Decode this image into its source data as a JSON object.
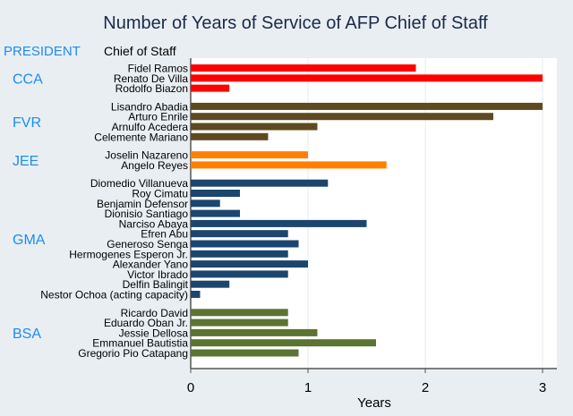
{
  "chart_data": {
    "type": "bar",
    "orientation": "horizontal",
    "title": "Number of Years of Service of AFP Chief of Staff",
    "xlabel": "Years",
    "group_header": "PRESIDENT",
    "category_header": "Chief of Staff",
    "xlim": [
      0,
      3.1
    ],
    "xticks": [
      "0",
      "1",
      "2",
      "3"
    ],
    "grid": true,
    "groups": [
      {
        "name": "CCA",
        "color": "#ff0000",
        "items": [
          {
            "label": "Fidel Ramos",
            "value": 1.92
          },
          {
            "label": "Renato De Villa",
            "value": 3.0
          },
          {
            "label": "Rodolfo Biazon",
            "value": 0.33
          }
        ]
      },
      {
        "name": "FVR",
        "color": "#5e4a1e",
        "items": [
          {
            "label": "Lisandro Abadia",
            "value": 3.0
          },
          {
            "label": "Arturo Enrile",
            "value": 2.58
          },
          {
            "label": "Arnulfo Acedera",
            "value": 1.08
          },
          {
            "label": "Celemente Mariano",
            "value": 0.66
          }
        ]
      },
      {
        "name": "JEE",
        "color": "#ff8000",
        "items": [
          {
            "label": "Joselin Nazareno",
            "value": 1.0
          },
          {
            "label": "Angelo Reyes",
            "value": 1.67
          }
        ]
      },
      {
        "name": "GMA",
        "color": "#1c466e",
        "items": [
          {
            "label": "Diomedio Villanueva",
            "value": 1.17
          },
          {
            "label": "Roy Cimatu",
            "value": 0.42
          },
          {
            "label": "Benjamin Defensor",
            "value": 0.25
          },
          {
            "label": "Dionisio Santiago",
            "value": 0.42
          },
          {
            "label": "Narciso Abaya",
            "value": 1.5
          },
          {
            "label": "Efren Abu",
            "value": 0.83
          },
          {
            "label": "Generoso Senga",
            "value": 0.92
          },
          {
            "label": "Hermogenes Esperon Jr.",
            "value": 0.83
          },
          {
            "label": "Alexander Yano",
            "value": 1.0
          },
          {
            "label": "Victor Ibrado",
            "value": 0.83
          },
          {
            "label": "Delfin Balingit",
            "value": 0.33
          },
          {
            "label": "Nestor Ochoa (acting capacity)",
            "value": 0.08
          }
        ]
      },
      {
        "name": "BSA",
        "color": "#5a7431",
        "items": [
          {
            "label": "Ricardo David",
            "value": 0.83
          },
          {
            "label": "Eduardo Oban Jr.",
            "value": 0.83
          },
          {
            "label": "Jessie Dellosa",
            "value": 1.08
          },
          {
            "label": "Emmanuel Bautistia",
            "value": 1.58
          },
          {
            "label": "Gregorio Pio Catapang",
            "value": 0.92
          }
        ]
      }
    ]
  }
}
